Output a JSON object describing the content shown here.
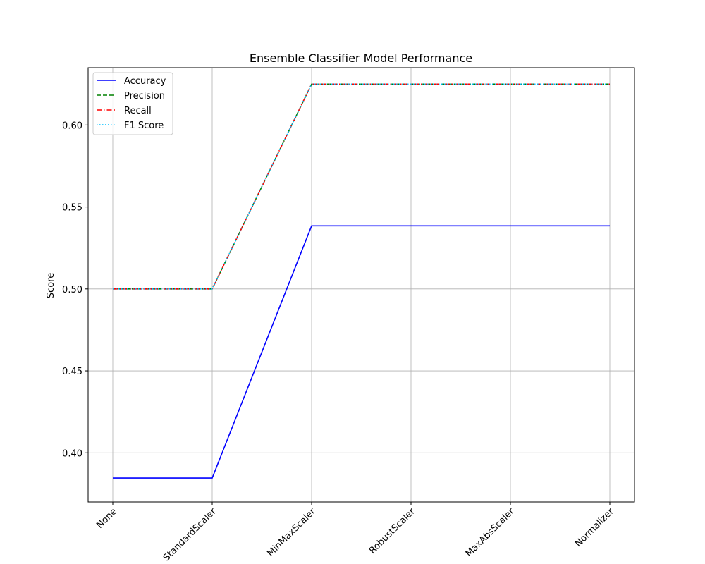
{
  "chart_data": {
    "type": "line",
    "title": "Ensemble Classifier Model Performance",
    "xlabel": "",
    "ylabel": "Score",
    "categories": [
      "None",
      "StandardScaler",
      "MinMaxScaler",
      "RobustScaler",
      "MaxAbsScaler",
      "Normalizer"
    ],
    "ylim": [
      0.37,
      0.635
    ],
    "yticks": [
      "0.40",
      "0.45",
      "0.50",
      "0.55",
      "0.60"
    ],
    "grid": true,
    "legend_position": "top-left",
    "series": [
      {
        "name": "Accuracy",
        "values": [
          0.3846,
          0.3846,
          0.5385,
          0.5385,
          0.5385,
          0.5385
        ],
        "color": "#0000ff",
        "style": "solid"
      },
      {
        "name": "Precision",
        "values": [
          0.5,
          0.5,
          0.625,
          0.625,
          0.625,
          0.625
        ],
        "color": "#008000",
        "style": "dashed"
      },
      {
        "name": "Recall",
        "values": [
          0.5,
          0.5,
          0.625,
          0.625,
          0.625,
          0.625
        ],
        "color": "#ff0000",
        "style": "dashdot"
      },
      {
        "name": "F1 Score",
        "values": [
          0.5,
          0.5,
          0.625,
          0.625,
          0.625,
          0.625
        ],
        "color": "#00bfff",
        "style": "dotted"
      }
    ]
  }
}
